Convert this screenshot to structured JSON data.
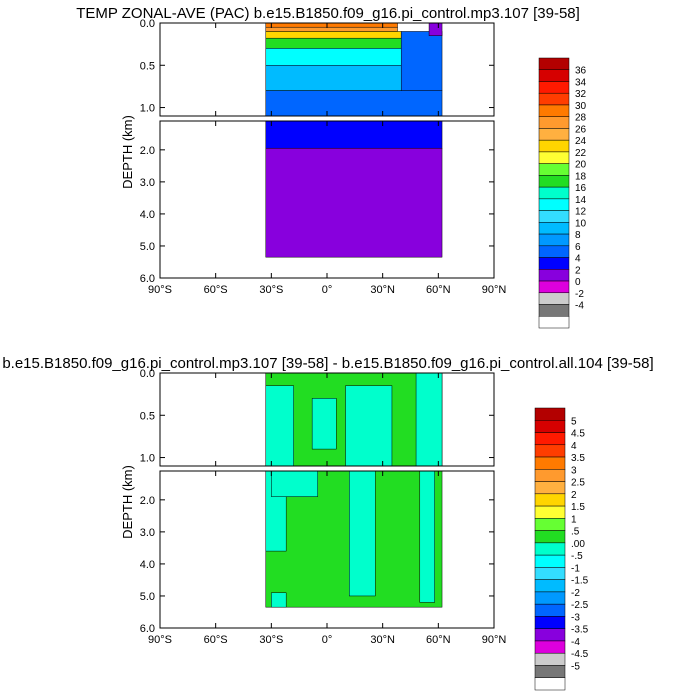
{
  "chart_data": [
    {
      "type": "contour",
      "title": "TEMP ZONAL-AVE (PAC) b.e15.B1850.f09_g16.pi_control.mp3.107 [39-58]",
      "ylabel": "DEPTH (km)",
      "xlim": [
        -90,
        90
      ],
      "x_ticks": [
        -90,
        -60,
        -30,
        0,
        30,
        60,
        90
      ],
      "x_tick_labels": [
        "90°S",
        "60°S",
        "30°S",
        "0°",
        "30°N",
        "60°N",
        "90°N"
      ],
      "upper_panel": {
        "ylim": [
          0.0,
          1.1
        ],
        "y_tick_labels": [
          "0.0",
          "0.5",
          "1.0"
        ]
      },
      "lower_panel": {
        "ylim": [
          1.1,
          6.0
        ],
        "y_tick_labels": [
          "2.0",
          "3.0",
          "4.0",
          "5.0",
          "6.0"
        ]
      },
      "colorbar_labels": [
        "36",
        "34",
        "32",
        "30",
        "28",
        "26",
        "24",
        "22",
        "20",
        "18",
        "16",
        "14",
        "12",
        "10",
        "8",
        "6",
        "4",
        "2",
        "0",
        "-2",
        "-4"
      ],
      "colorbar_colors": [
        "#b30000",
        "#d60000",
        "#ff1a00",
        "#ff3d00",
        "#ff7a00",
        "#ff9a2e",
        "#ffb040",
        "#ffd500",
        "#ffff33",
        "#66ff33",
        "#22dd22",
        "#00ffcc",
        "#00ffff",
        "#33ddff",
        "#00bbff",
        "#0099ff",
        "#0066ff",
        "#0000ff",
        "#8800dd",
        "#dd00dd",
        "#cccccc",
        "#777777",
        "#ffffff"
      ],
      "data_extent_x": [
        -33,
        62
      ],
      "data_extent_depth": [
        0.0,
        5.35
      ],
      "regions": [
        {
          "x": [
            -33,
            38
          ],
          "depth": [
            0.0,
            0.05
          ],
          "value": 28
        },
        {
          "x": [
            -33,
            38
          ],
          "depth": [
            0.05,
            0.1
          ],
          "value": 26
        },
        {
          "x": [
            -33,
            40
          ],
          "depth": [
            0.1,
            0.18
          ],
          "value": 22
        },
        {
          "x": [
            -33,
            42
          ],
          "depth": [
            0.18,
            0.3
          ],
          "value": 16
        },
        {
          "x": [
            -33,
            45
          ],
          "depth": [
            0.3,
            0.5
          ],
          "value": 12
        },
        {
          "x": [
            -33,
            50
          ],
          "depth": [
            0.5,
            0.8
          ],
          "value": 8
        },
        {
          "x": [
            -33,
            62
          ],
          "depth": [
            0.8,
            1.1
          ],
          "value": 5
        },
        {
          "x": [
            40,
            62
          ],
          "depth": [
            0.1,
            0.8
          ],
          "value": 5
        },
        {
          "x": [
            55,
            62
          ],
          "depth": [
            0.0,
            0.15
          ],
          "value": 1
        },
        {
          "x": [
            -33,
            62
          ],
          "depth": [
            1.1,
            1.95
          ],
          "value": 3
        },
        {
          "x": [
            -33,
            62
          ],
          "depth": [
            1.95,
            5.35
          ],
          "value": 1
        }
      ]
    },
    {
      "type": "contour",
      "title": "b.e15.B1850.f09_g16.pi_control.mp3.107 [39-58] - b.e15.B1850.f09_g16.pi_control.all.104 [39-58]",
      "ylabel": "DEPTH (km)",
      "xlim": [
        -90,
        90
      ],
      "x_ticks": [
        -90,
        -60,
        -30,
        0,
        30,
        60,
        90
      ],
      "x_tick_labels": [
        "90°S",
        "60°S",
        "30°S",
        "0°",
        "30°N",
        "60°N",
        "90°N"
      ],
      "upper_panel": {
        "ylim": [
          0.0,
          1.1
        ],
        "y_tick_labels": [
          "0.0",
          "0.5",
          "1.0"
        ]
      },
      "lower_panel": {
        "ylim": [
          1.1,
          6.0
        ],
        "y_tick_labels": [
          "2.0",
          "3.0",
          "4.0",
          "5.0",
          "6.0"
        ]
      },
      "colorbar_labels": [
        "5",
        "4.5",
        "4",
        "3.5",
        "3",
        "2.5",
        "2",
        "1.5",
        "1",
        ".5",
        ".00",
        "-.5",
        "-1",
        "-1.5",
        "-2",
        "-2.5",
        "-3",
        "-3.5",
        "-4",
        "-4.5",
        "-5"
      ],
      "colorbar_colors": [
        "#b30000",
        "#d60000",
        "#ff1a00",
        "#ff3d00",
        "#ff7a00",
        "#ff9a2e",
        "#ffb040",
        "#ffd500",
        "#ffff33",
        "#66ff33",
        "#22dd22",
        "#00ffcc",
        "#00ffff",
        "#33ddff",
        "#00bbff",
        "#0099ff",
        "#0066ff",
        "#0000ff",
        "#8800dd",
        "#dd00dd",
        "#cccccc",
        "#777777",
        "#ffffff"
      ],
      "data_extent_x": [
        -33,
        62
      ],
      "data_extent_depth": [
        0.0,
        5.35
      ],
      "regions": [
        {
          "x": [
            -33,
            62
          ],
          "depth": [
            0.0,
            5.35
          ],
          "value": 0.25
        },
        {
          "x": [
            -33,
            -18
          ],
          "depth": [
            0.15,
            1.1
          ],
          "value": -0.25
        },
        {
          "x": [
            -8,
            5
          ],
          "depth": [
            0.3,
            0.9
          ],
          "value": -0.25
        },
        {
          "x": [
            10,
            35
          ],
          "depth": [
            0.15,
            1.1
          ],
          "value": -0.25
        },
        {
          "x": [
            48,
            62
          ],
          "depth": [
            0.0,
            1.1
          ],
          "value": -0.25
        },
        {
          "x": [
            -33,
            -22
          ],
          "depth": [
            1.1,
            3.6
          ],
          "value": -0.25
        },
        {
          "x": [
            -30,
            -5
          ],
          "depth": [
            1.1,
            1.9
          ],
          "value": -0.25
        },
        {
          "x": [
            12,
            26
          ],
          "depth": [
            1.1,
            5.0
          ],
          "value": -0.25
        },
        {
          "x": [
            50,
            58
          ],
          "depth": [
            1.1,
            5.2
          ],
          "value": -0.25
        },
        {
          "x": [
            -30,
            -22
          ],
          "depth": [
            4.9,
            5.35
          ],
          "value": -0.25
        }
      ]
    }
  ]
}
